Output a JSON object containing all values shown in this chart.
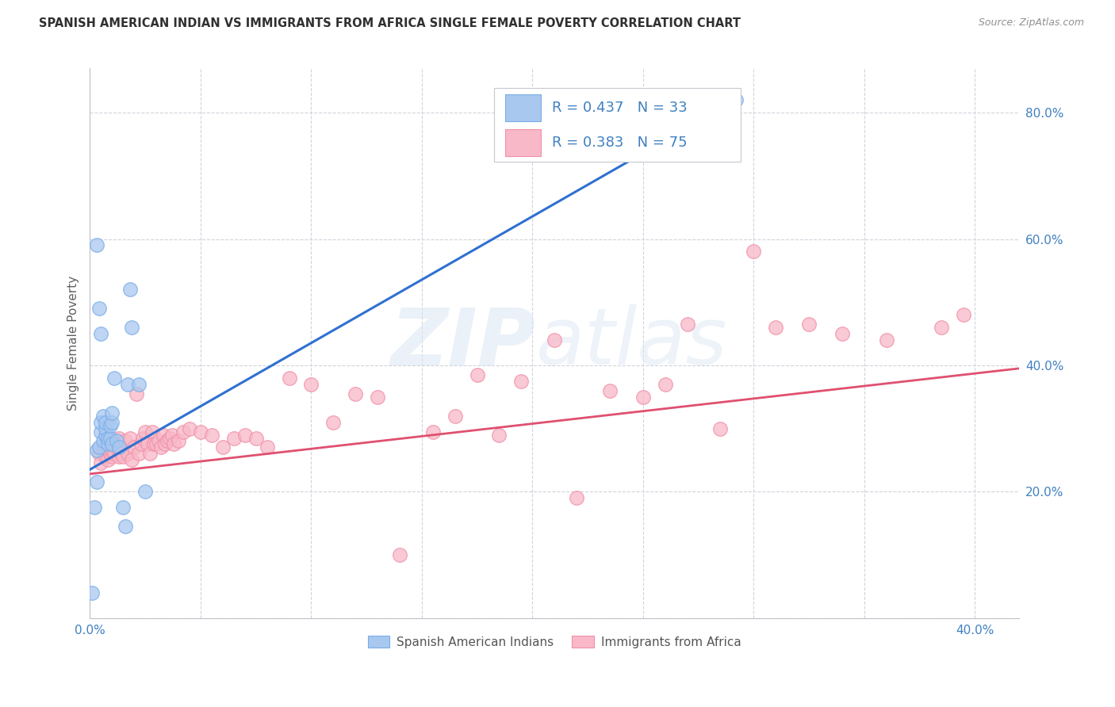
{
  "title": "SPANISH AMERICAN INDIAN VS IMMIGRANTS FROM AFRICA SINGLE FEMALE POVERTY CORRELATION CHART",
  "source": "Source: ZipAtlas.com",
  "ylabel": "Single Female Poverty",
  "xlim": [
    0.0,
    0.42
  ],
  "ylim": [
    0.0,
    0.87
  ],
  "x_tick_positions": [
    0.0,
    0.05,
    0.1,
    0.15,
    0.2,
    0.25,
    0.3,
    0.35,
    0.4
  ],
  "x_tick_labels": [
    "0.0%",
    "",
    "",
    "",
    "",
    "",
    "",
    "",
    "40.0%"
  ],
  "y_tick_positions": [
    0.0,
    0.2,
    0.4,
    0.6,
    0.8
  ],
  "y_tick_labels": [
    "",
    "20.0%",
    "40.0%",
    "60.0%",
    "80.0%"
  ],
  "blue_fill": "#A8C8F0",
  "blue_edge": "#7AAEE8",
  "pink_fill": "#F8B8C8",
  "pink_edge": "#F090A8",
  "blue_line_color": "#3070D0",
  "pink_line_color": "#E05070",
  "tick_label_color": "#4080C0",
  "grid_color": "#D0D4DC",
  "ylabel_color": "#606060",
  "title_color": "#303030",
  "source_color": "#909090",
  "R_blue": 0.437,
  "N_blue": 33,
  "R_pink": 0.383,
  "N_pink": 75,
  "blue_line_x": [
    0.0,
    0.292
  ],
  "blue_line_y": [
    0.235,
    0.82
  ],
  "pink_line_x": [
    0.0,
    0.42
  ],
  "pink_line_y": [
    0.228,
    0.395
  ],
  "blue_x": [
    0.001,
    0.002,
    0.003,
    0.003,
    0.004,
    0.005,
    0.005,
    0.006,
    0.006,
    0.007,
    0.007,
    0.007,
    0.008,
    0.008,
    0.009,
    0.009,
    0.01,
    0.01,
    0.01,
    0.011,
    0.012,
    0.013,
    0.015,
    0.016,
    0.017,
    0.018,
    0.019,
    0.022,
    0.025,
    0.003,
    0.004,
    0.005,
    0.292
  ],
  "blue_y": [
    0.04,
    0.175,
    0.215,
    0.265,
    0.27,
    0.295,
    0.31,
    0.28,
    0.32,
    0.29,
    0.3,
    0.31,
    0.275,
    0.285,
    0.285,
    0.305,
    0.275,
    0.31,
    0.325,
    0.38,
    0.28,
    0.27,
    0.175,
    0.145,
    0.37,
    0.52,
    0.46,
    0.37,
    0.2,
    0.59,
    0.49,
    0.45,
    0.82
  ],
  "pink_x": [
    0.004,
    0.005,
    0.006,
    0.007,
    0.008,
    0.008,
    0.009,
    0.009,
    0.01,
    0.01,
    0.011,
    0.011,
    0.012,
    0.013,
    0.013,
    0.014,
    0.015,
    0.016,
    0.017,
    0.018,
    0.019,
    0.02,
    0.021,
    0.022,
    0.023,
    0.024,
    0.025,
    0.026,
    0.027,
    0.028,
    0.029,
    0.03,
    0.031,
    0.032,
    0.033,
    0.034,
    0.035,
    0.036,
    0.037,
    0.038,
    0.04,
    0.042,
    0.045,
    0.05,
    0.055,
    0.06,
    0.065,
    0.07,
    0.075,
    0.08,
    0.09,
    0.1,
    0.11,
    0.12,
    0.13,
    0.14,
    0.155,
    0.165,
    0.175,
    0.185,
    0.195,
    0.21,
    0.22,
    0.235,
    0.25,
    0.26,
    0.27,
    0.285,
    0.3,
    0.31,
    0.325,
    0.34,
    0.36,
    0.385,
    0.395
  ],
  "pink_y": [
    0.26,
    0.245,
    0.27,
    0.255,
    0.265,
    0.25,
    0.26,
    0.285,
    0.255,
    0.265,
    0.26,
    0.28,
    0.27,
    0.285,
    0.255,
    0.26,
    0.255,
    0.28,
    0.26,
    0.285,
    0.25,
    0.27,
    0.355,
    0.26,
    0.275,
    0.285,
    0.295,
    0.275,
    0.26,
    0.295,
    0.275,
    0.275,
    0.28,
    0.27,
    0.29,
    0.275,
    0.28,
    0.285,
    0.29,
    0.275,
    0.28,
    0.295,
    0.3,
    0.295,
    0.29,
    0.27,
    0.285,
    0.29,
    0.285,
    0.27,
    0.38,
    0.37,
    0.31,
    0.355,
    0.35,
    0.1,
    0.295,
    0.32,
    0.385,
    0.29,
    0.375,
    0.44,
    0.19,
    0.36,
    0.35,
    0.37,
    0.465,
    0.3,
    0.58,
    0.46,
    0.465,
    0.45,
    0.44,
    0.46,
    0.48
  ]
}
